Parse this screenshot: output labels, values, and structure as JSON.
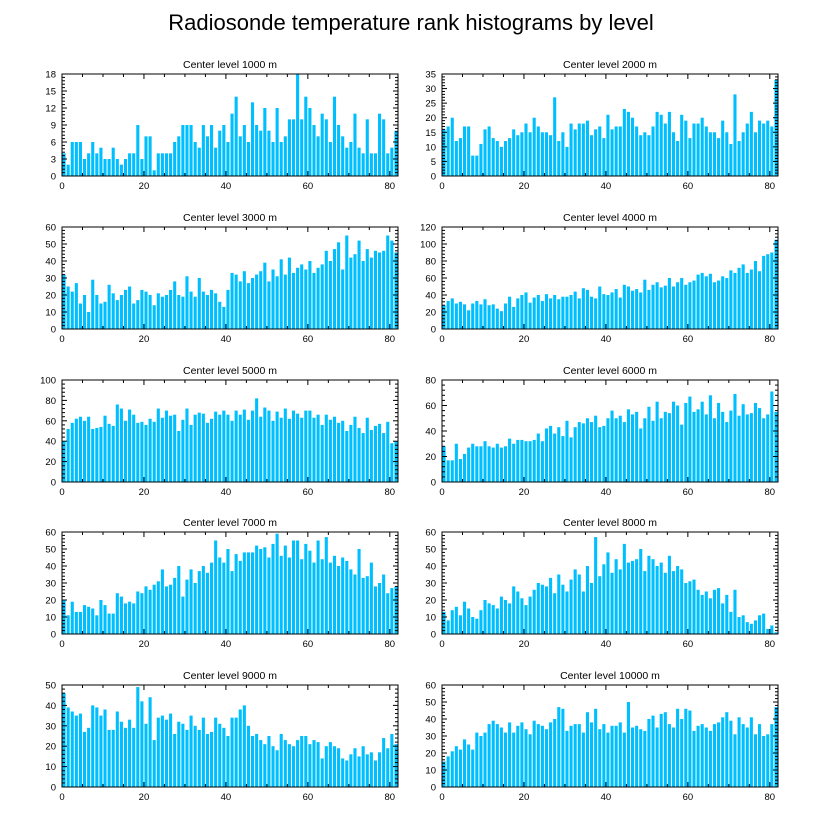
{
  "figure_title": "Radiosonde temperature rank histograms by level",
  "colors": {
    "bar": "#00bfff",
    "axis": "#000000",
    "background": "#ffffff"
  },
  "chart_data": [
    {
      "type": "bar",
      "title": "Center level 1000 m",
      "xlim": [
        0,
        82
      ],
      "ylim": [
        0,
        18
      ],
      "xticks": [
        0,
        20,
        40,
        60,
        80
      ],
      "yticks": [
        0,
        3,
        6,
        9,
        12,
        15,
        18
      ],
      "values": [
        4,
        2,
        6,
        6,
        6,
        3,
        4,
        6,
        4,
        5,
        3,
        3,
        5,
        3,
        2,
        3,
        4,
        4,
        9,
        3,
        7,
        7,
        1,
        4,
        4,
        4,
        4,
        6,
        7,
        9,
        9,
        9,
        6,
        5,
        9,
        7,
        9,
        5,
        8,
        9,
        6,
        11,
        14,
        7,
        9,
        6,
        13,
        9,
        8,
        12,
        8,
        6,
        12,
        6,
        7,
        10,
        10,
        18,
        10,
        14,
        12,
        9,
        7,
        11,
        10,
        6,
        14,
        9,
        7,
        5,
        6,
        11,
        5,
        4,
        10,
        4,
        4,
        11,
        10,
        4,
        5,
        8
      ]
    },
    {
      "type": "bar",
      "title": "Center level 2000 m",
      "xlim": [
        0,
        82
      ],
      "ylim": [
        0,
        35
      ],
      "xticks": [
        0,
        20,
        40,
        60,
        80
      ],
      "yticks": [
        0,
        5,
        10,
        15,
        20,
        25,
        30,
        35
      ],
      "values": [
        16,
        17,
        20,
        12,
        13,
        17,
        17,
        7,
        7,
        11,
        16,
        17,
        13,
        12,
        10,
        12,
        13,
        16,
        14,
        15,
        18,
        15,
        20,
        17,
        15,
        15,
        14,
        27,
        12,
        15,
        10,
        18,
        16,
        18,
        18,
        19,
        14,
        16,
        17,
        13,
        21,
        16,
        17,
        17,
        23,
        22,
        20,
        17,
        14,
        15,
        14,
        17,
        22,
        21,
        18,
        22,
        15,
        12,
        21,
        19,
        13,
        18,
        18,
        20,
        17,
        15,
        15,
        13,
        19,
        15,
        11,
        28,
        12,
        15,
        18,
        22,
        15,
        19,
        18,
        19,
        17,
        33
      ]
    },
    {
      "type": "bar",
      "title": "Center level 3000 m",
      "xlim": [
        0,
        82
      ],
      "ylim": [
        0,
        60
      ],
      "xticks": [
        0,
        20,
        40,
        60,
        80
      ],
      "yticks": [
        0,
        10,
        20,
        30,
        40,
        50,
        60
      ],
      "values": [
        32,
        25,
        22,
        27,
        15,
        20,
        10,
        29,
        20,
        15,
        16,
        26,
        21,
        17,
        20,
        23,
        25,
        15,
        17,
        23,
        22,
        20,
        14,
        21,
        19,
        20,
        23,
        28,
        20,
        19,
        31,
        22,
        19,
        30,
        22,
        20,
        23,
        21,
        16,
        13,
        23,
        33,
        32,
        28,
        34,
        27,
        30,
        32,
        34,
        39,
        28,
        35,
        31,
        41,
        32,
        42,
        33,
        36,
        38,
        35,
        40,
        33,
        36,
        38,
        46,
        40,
        47,
        51,
        35,
        55,
        42,
        44,
        52,
        40,
        47,
        42,
        46,
        45,
        46,
        55,
        52,
        45
      ]
    },
    {
      "type": "bar",
      "title": "Center level 4000 m",
      "xlim": [
        0,
        82
      ],
      "ylim": [
        0,
        120
      ],
      "xticks": [
        0,
        20,
        40,
        60,
        80
      ],
      "yticks": [
        0,
        20,
        40,
        60,
        80,
        100,
        120
      ],
      "values": [
        28,
        33,
        36,
        30,
        32,
        29,
        22,
        30,
        33,
        29,
        35,
        28,
        29,
        24,
        21,
        30,
        38,
        26,
        36,
        40,
        43,
        31,
        37,
        40,
        33,
        41,
        36,
        40,
        35,
        38,
        38,
        40,
        44,
        36,
        48,
        46,
        38,
        36,
        50,
        41,
        40,
        43,
        47,
        37,
        52,
        50,
        45,
        47,
        43,
        58,
        46,
        52,
        55,
        49,
        51,
        60,
        50,
        55,
        60,
        52,
        55,
        57,
        64,
        66,
        62,
        65,
        55,
        57,
        62,
        60,
        69,
        66,
        72,
        76,
        66,
        70,
        80,
        68,
        86,
        88,
        90,
        105
      ]
    },
    {
      "type": "bar",
      "title": "Center level 5000 m",
      "xlim": [
        0,
        82
      ],
      "ylim": [
        0,
        100
      ],
      "xticks": [
        0,
        20,
        40,
        60,
        80
      ],
      "yticks": [
        0,
        20,
        40,
        60,
        80,
        100
      ],
      "values": [
        40,
        52,
        58,
        62,
        64,
        60,
        64,
        52,
        53,
        54,
        65,
        57,
        55,
        76,
        72,
        60,
        71,
        66,
        58,
        59,
        56,
        62,
        59,
        72,
        63,
        70,
        65,
        66,
        50,
        61,
        72,
        56,
        66,
        68,
        67,
        58,
        62,
        69,
        66,
        70,
        66,
        60,
        70,
        66,
        71,
        61,
        70,
        82,
        64,
        73,
        70,
        60,
        69,
        63,
        72,
        62,
        70,
        67,
        63,
        70,
        70,
        63,
        66,
        56,
        66,
        61,
        64,
        58,
        60,
        50,
        56,
        64,
        53,
        48,
        63,
        51,
        55,
        57,
        48,
        59,
        38,
        40
      ]
    },
    {
      "type": "bar",
      "title": "Center level 6000 m",
      "xlim": [
        0,
        82
      ],
      "ylim": [
        0,
        80
      ],
      "xticks": [
        0,
        20,
        40,
        60,
        80
      ],
      "yticks": [
        0,
        20,
        40,
        60,
        80
      ],
      "values": [
        28,
        17,
        17,
        30,
        18,
        22,
        27,
        30,
        28,
        28,
        32,
        28,
        27,
        30,
        27,
        28,
        34,
        30,
        33,
        33,
        32,
        32,
        33,
        38,
        32,
        42,
        44,
        38,
        43,
        36,
        48,
        35,
        43,
        47,
        46,
        50,
        47,
        52,
        43,
        44,
        50,
        56,
        50,
        52,
        47,
        57,
        53,
        55,
        42,
        50,
        59,
        48,
        63,
        50,
        55,
        54,
        63,
        60,
        45,
        62,
        67,
        55,
        57,
        63,
        53,
        68,
        50,
        62,
        55,
        47,
        56,
        69,
        52,
        61,
        53,
        54,
        62,
        58,
        50,
        53,
        71,
        55
      ]
    },
    {
      "type": "bar",
      "title": "Center level 7000 m",
      "xlim": [
        0,
        82
      ],
      "ylim": [
        0,
        60
      ],
      "xticks": [
        0,
        20,
        40,
        60,
        80
      ],
      "yticks": [
        0,
        10,
        20,
        30,
        40,
        50,
        60
      ],
      "values": [
        20,
        11,
        19,
        13,
        13,
        17,
        16,
        15,
        11,
        20,
        17,
        12,
        12,
        24,
        22,
        18,
        19,
        18,
        25,
        24,
        28,
        26,
        29,
        31,
        38,
        28,
        29,
        33,
        40,
        22,
        32,
        38,
        30,
        37,
        40,
        36,
        42,
        55,
        45,
        42,
        50,
        37,
        47,
        43,
        48,
        48,
        48,
        52,
        50,
        51,
        45,
        53,
        59,
        46,
        52,
        45,
        55,
        55,
        44,
        53,
        49,
        42,
        55,
        44,
        57,
        42,
        46,
        40,
        45,
        43,
        38,
        35,
        50,
        33,
        34,
        42,
        28,
        30,
        35,
        24,
        27,
        28
      ]
    },
    {
      "type": "bar",
      "title": "Center level 8000 m",
      "xlim": [
        0,
        82
      ],
      "ylim": [
        0,
        60
      ],
      "xticks": [
        0,
        20,
        40,
        60,
        80
      ],
      "yticks": [
        0,
        10,
        20,
        30,
        40,
        50,
        60
      ],
      "values": [
        13,
        8,
        14,
        16,
        11,
        19,
        15,
        10,
        9,
        14,
        20,
        18,
        17,
        15,
        22,
        20,
        18,
        28,
        25,
        21,
        17,
        22,
        26,
        30,
        29,
        28,
        33,
        24,
        35,
        29,
        25,
        32,
        38,
        35,
        25,
        40,
        30,
        57,
        34,
        41,
        48,
        36,
        44,
        38,
        53,
        42,
        43,
        44,
        50,
        37,
        46,
        44,
        40,
        42,
        36,
        46,
        37,
        40,
        38,
        30,
        31,
        32,
        26,
        23,
        25,
        21,
        26,
        27,
        18,
        23,
        13,
        26,
        10,
        11,
        7,
        6,
        8,
        11,
        12,
        3,
        5,
        1
      ]
    },
    {
      "type": "bar",
      "title": "Center level 9000 m",
      "xlim": [
        0,
        82
      ],
      "ylim": [
        0,
        50
      ],
      "xticks": [
        0,
        20,
        40,
        60,
        80
      ],
      "yticks": [
        0,
        10,
        20,
        30,
        40,
        50
      ],
      "values": [
        46,
        39,
        37,
        35,
        36,
        27,
        29,
        40,
        39,
        35,
        38,
        28,
        28,
        37,
        32,
        29,
        33,
        29,
        49,
        42,
        31,
        44,
        23,
        34,
        35,
        33,
        36,
        26,
        32,
        31,
        28,
        35,
        30,
        28,
        34,
        26,
        27,
        34,
        31,
        29,
        25,
        34,
        34,
        38,
        40,
        30,
        25,
        26,
        23,
        21,
        25,
        20,
        18,
        26,
        23,
        21,
        20,
        23,
        25,
        25,
        21,
        23,
        22,
        14,
        20,
        22,
        20,
        19,
        14,
        13,
        16,
        19,
        15,
        20,
        16,
        17,
        13,
        17,
        24,
        19,
        26,
        21
      ]
    },
    {
      "type": "bar",
      "title": "Center level 10000 m",
      "xlim": [
        0,
        82
      ],
      "ylim": [
        0,
        60
      ],
      "xticks": [
        0,
        20,
        40,
        60,
        80
      ],
      "yticks": [
        0,
        10,
        20,
        30,
        40,
        50,
        60
      ],
      "values": [
        15,
        18,
        21,
        24,
        22,
        28,
        25,
        22,
        32,
        30,
        32,
        37,
        39,
        37,
        35,
        32,
        38,
        32,
        36,
        38,
        34,
        31,
        39,
        37,
        36,
        34,
        38,
        40,
        47,
        46,
        33,
        36,
        37,
        37,
        32,
        44,
        38,
        46,
        34,
        37,
        32,
        36,
        36,
        38,
        32,
        50,
        35,
        36,
        34,
        33,
        40,
        42,
        35,
        43,
        44,
        37,
        35,
        46,
        40,
        46,
        45,
        33,
        36,
        37,
        35,
        33,
        37,
        38,
        41,
        44,
        39,
        31,
        41,
        37,
        35,
        41,
        31,
        37,
        30,
        31,
        37,
        47
      ]
    }
  ]
}
